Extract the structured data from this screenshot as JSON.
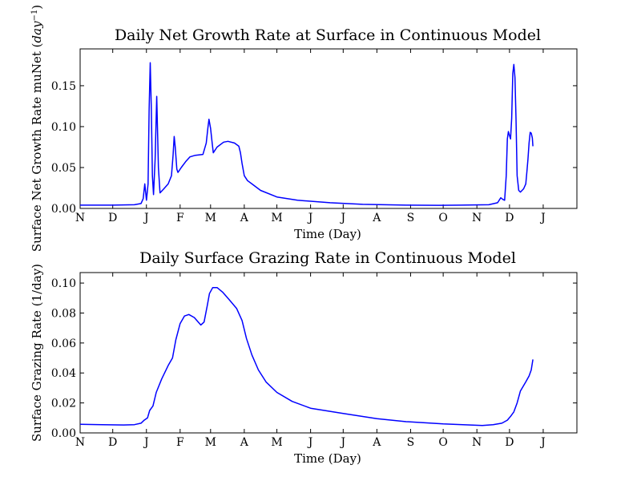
{
  "colors": {
    "line": "#0000ff",
    "axes": "#000000",
    "background": "#ffffff"
  },
  "chart_data": [
    {
      "type": "line",
      "title": "Daily Net Growth Rate at Surface in Continuous Model",
      "xlabel": "Time (Day)",
      "ylabel": "Surface Net Growth Rate muNet",
      "ylabel_unit": "day",
      "ylabel_unit_exp": "−1",
      "xlim": [
        0,
        457
      ],
      "ylim": [
        0,
        0.195
      ],
      "x_ticks": [
        0,
        30,
        61,
        92,
        120,
        151,
        181,
        212,
        242,
        273,
        304,
        334,
        365,
        395,
        426
      ],
      "x_tick_labels": [
        "N",
        "D",
        "J",
        "F",
        "M",
        "A",
        "M",
        "J",
        "J",
        "A",
        "S",
        "O",
        "N",
        "D",
        "J"
      ],
      "y_ticks": [
        0.0,
        0.05,
        0.1,
        0.15
      ],
      "y_tick_labels": [
        "0.00",
        "0.05",
        "0.10",
        "0.15"
      ],
      "grid": false,
      "series": [
        {
          "color": "#0000ff",
          "points": [
            [
              0,
              0.004
            ],
            [
              30,
              0.004
            ],
            [
              50,
              0.0045
            ],
            [
              56,
              0.006
            ],
            [
              58,
              0.012
            ],
            [
              59.5,
              0.03
            ],
            [
              61,
              0.01
            ],
            [
              62.5,
              0.03
            ],
            [
              63.5,
              0.12
            ],
            [
              64.5,
              0.178
            ],
            [
              65.5,
              0.12
            ],
            [
              66.5,
              0.04
            ],
            [
              67.5,
              0.017
            ],
            [
              69,
              0.06
            ],
            [
              70.5,
              0.137
            ],
            [
              72,
              0.05
            ],
            [
              73.5,
              0.019
            ],
            [
              77,
              0.024
            ],
            [
              81,
              0.03
            ],
            [
              84,
              0.04
            ],
            [
              85.5,
              0.065
            ],
            [
              86.5,
              0.088
            ],
            [
              87.5,
              0.075
            ],
            [
              89,
              0.048
            ],
            [
              90,
              0.044
            ],
            [
              93,
              0.05
            ],
            [
              97,
              0.057
            ],
            [
              101,
              0.063
            ],
            [
              106,
              0.065
            ],
            [
              113,
              0.066
            ],
            [
              116,
              0.08
            ],
            [
              117.5,
              0.098
            ],
            [
              118.5,
              0.109
            ],
            [
              120,
              0.098
            ],
            [
              121.5,
              0.08
            ],
            [
              122.5,
              0.068
            ],
            [
              126,
              0.075
            ],
            [
              132,
              0.081
            ],
            [
              136,
              0.082
            ],
            [
              142,
              0.08
            ],
            [
              146,
              0.076
            ],
            [
              147.5,
              0.068
            ],
            [
              149,
              0.055
            ],
            [
              151,
              0.04
            ],
            [
              154,
              0.034
            ],
            [
              158,
              0.03
            ],
            [
              166,
              0.022
            ],
            [
              181,
              0.014
            ],
            [
              200,
              0.01
            ],
            [
              230,
              0.007
            ],
            [
              260,
              0.005
            ],
            [
              300,
              0.004
            ],
            [
              330,
              0.0038
            ],
            [
              350,
              0.004
            ],
            [
              376,
              0.0045
            ],
            [
              384,
              0.007
            ],
            [
              387,
              0.013
            ],
            [
              389,
              0.011
            ],
            [
              390.5,
              0.01
            ],
            [
              392,
              0.04
            ],
            [
              393,
              0.085
            ],
            [
              394,
              0.094
            ],
            [
              395,
              0.089
            ],
            [
              396,
              0.085
            ],
            [
              397,
              0.11
            ],
            [
              398,
              0.165
            ],
            [
              399,
              0.176
            ],
            [
              400,
              0.16
            ],
            [
              401,
              0.11
            ],
            [
              402,
              0.04
            ],
            [
              403.5,
              0.022
            ],
            [
              405,
              0.02
            ],
            [
              408,
              0.024
            ],
            [
              410,
              0.03
            ],
            [
              411,
              0.045
            ],
            [
              412,
              0.06
            ],
            [
              413,
              0.08
            ],
            [
              414,
              0.093
            ],
            [
              415,
              0.092
            ],
            [
              416,
              0.086
            ],
            [
              416.5,
              0.076
            ]
          ]
        }
      ]
    },
    {
      "type": "line",
      "title": "Daily Surface Grazing Rate in Continuous Model",
      "xlabel": "Time (Day)",
      "ylabel": "Surface Grazing Rate (1/day)",
      "xlim": [
        0,
        457
      ],
      "ylim": [
        0,
        0.107
      ],
      "x_ticks": [
        0,
        30,
        61,
        92,
        120,
        151,
        181,
        212,
        242,
        273,
        304,
        334,
        365,
        395,
        426
      ],
      "x_tick_labels": [
        "N",
        "D",
        "J",
        "F",
        "M",
        "A",
        "M",
        "J",
        "J",
        "A",
        "S",
        "O",
        "N",
        "D",
        "J"
      ],
      "y_ticks": [
        0.0,
        0.02,
        0.04,
        0.06,
        0.08,
        0.1
      ],
      "y_tick_labels": [
        "0.00",
        "0.02",
        "0.04",
        "0.06",
        "0.08",
        "0.10"
      ],
      "grid": false,
      "series": [
        {
          "color": "#0000ff",
          "points": [
            [
              0,
              0.0058
            ],
            [
              20,
              0.0055
            ],
            [
              40,
              0.0053
            ],
            [
              50,
              0.0055
            ],
            [
              56,
              0.0065
            ],
            [
              59,
              0.0085
            ],
            [
              62,
              0.01
            ],
            [
              64,
              0.015
            ],
            [
              67,
              0.018
            ],
            [
              70,
              0.027
            ],
            [
              75,
              0.036
            ],
            [
              81,
              0.045
            ],
            [
              85,
              0.05
            ],
            [
              88,
              0.062
            ],
            [
              92,
              0.073
            ],
            [
              96,
              0.078
            ],
            [
              100,
              0.079
            ],
            [
              105,
              0.077
            ],
            [
              111,
              0.072
            ],
            [
              114,
              0.074
            ],
            [
              117,
              0.085
            ],
            [
              119,
              0.093
            ],
            [
              122,
              0.097
            ],
            [
              126,
              0.097
            ],
            [
              131,
              0.094
            ],
            [
              137,
              0.089
            ],
            [
              144,
              0.083
            ],
            [
              149,
              0.075
            ],
            [
              153,
              0.063
            ],
            [
              158,
              0.052
            ],
            [
              164,
              0.042
            ],
            [
              171,
              0.034
            ],
            [
              181,
              0.027
            ],
            [
              195,
              0.021
            ],
            [
              212,
              0.0165
            ],
            [
              242,
              0.013
            ],
            [
              273,
              0.0095
            ],
            [
              300,
              0.0075
            ],
            [
              334,
              0.006
            ],
            [
              352,
              0.0055
            ],
            [
              370,
              0.005
            ],
            [
              380,
              0.0055
            ],
            [
              388,
              0.0065
            ],
            [
              393,
              0.0085
            ],
            [
              396,
              0.011
            ],
            [
              399,
              0.014
            ],
            [
              402,
              0.02
            ],
            [
              405,
              0.028
            ],
            [
              410,
              0.034
            ],
            [
              413,
              0.038
            ],
            [
              415,
              0.042
            ],
            [
              416.5,
              0.049
            ]
          ]
        }
      ]
    }
  ]
}
